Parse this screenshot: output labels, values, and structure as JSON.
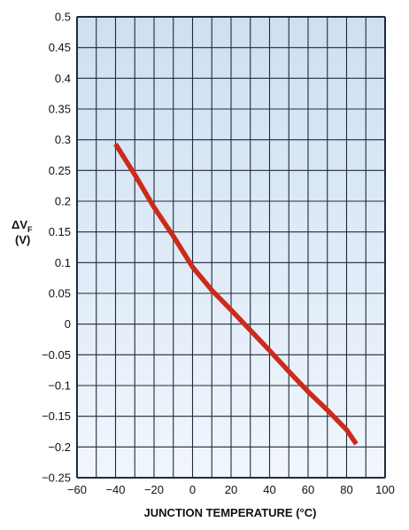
{
  "chart_data": {
    "type": "line",
    "title": "",
    "xlabel": "JUNCTION TEMPERATURE (°C)",
    "ylabel": {
      "main": "ΔV",
      "subscript": "F",
      "unit": "(V)"
    },
    "xlim": [
      -60,
      100
    ],
    "ylim": [
      -0.25,
      0.5
    ],
    "grid": true,
    "x_major_ticks": [
      -60,
      -40,
      -20,
      0,
      20,
      40,
      60,
      80,
      100
    ],
    "x_minor_step": 10,
    "y_major_step": 0.05,
    "x_tick_labels": [
      "−60",
      "−40",
      "−20",
      "0",
      "20",
      "40",
      "60",
      "80",
      "100"
    ],
    "y_tick_labels": [
      "0.5",
      "0.45",
      "0.4",
      "0.35",
      "0.3",
      "0.25",
      "0.2",
      "0.15",
      "0.1",
      "0.05",
      "0",
      "−0.05",
      "−0.1",
      "−0.15",
      "−0.2",
      "−0.25"
    ],
    "series": [
      {
        "x": [
          -40,
          -30,
          -20,
          -10,
          0,
          10,
          20,
          30,
          40,
          50,
          60,
          70,
          80,
          85
        ],
        "y": [
          0.293,
          0.243,
          0.19,
          0.143,
          0.093,
          0.055,
          0.023,
          -0.01,
          -0.043,
          -0.077,
          -0.11,
          -0.14,
          -0.172,
          -0.195
        ]
      }
    ],
    "colors": {
      "line": "#cc2a1c",
      "grid": "#1f2b3a",
      "plot_top": "#cddff2",
      "plot_bottom": "#f1f6fc"
    }
  }
}
